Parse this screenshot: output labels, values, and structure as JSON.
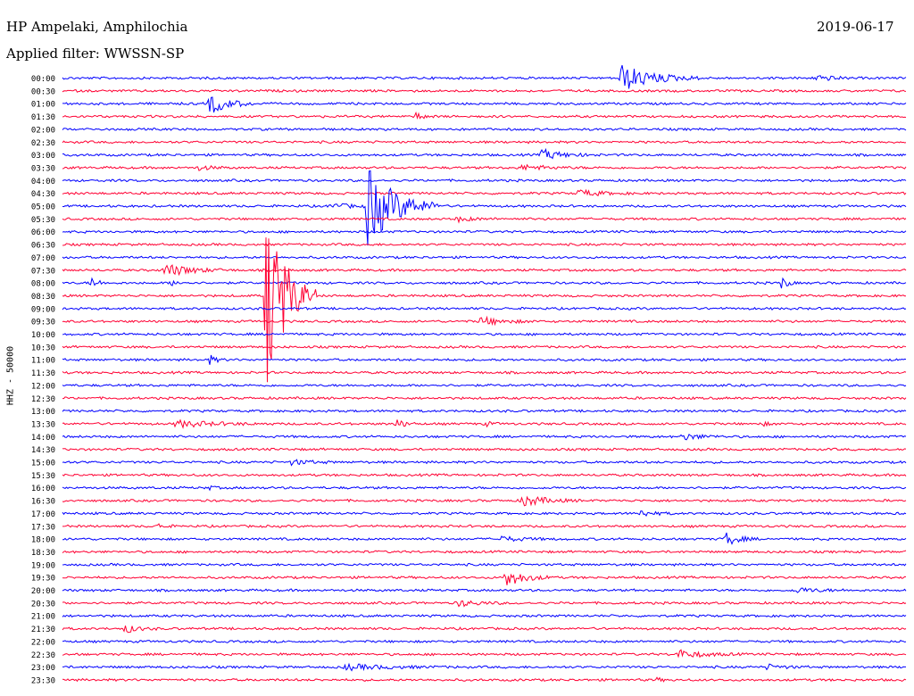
{
  "header": {
    "station": "HP Ampelaki, Amphilochia",
    "date": "2019-06-17",
    "filter": "Applied filter: WWSSN-SP"
  },
  "colors": {
    "even": "#0000ff",
    "odd": "#ff0033"
  },
  "chart_data": {
    "type": "line",
    "ylabel": "HHZ - 50000",
    "row_labels": [
      "00:00",
      "00:30",
      "01:00",
      "01:30",
      "02:00",
      "02:30",
      "03:00",
      "03:30",
      "04:00",
      "04:30",
      "05:00",
      "05:30",
      "06:00",
      "06:30",
      "07:00",
      "07:30",
      "08:00",
      "08:30",
      "09:00",
      "09:30",
      "10:00",
      "10:30",
      "11:00",
      "11:30",
      "12:00",
      "12:30",
      "13:00",
      "13:30",
      "14:00",
      "14:30",
      "15:00",
      "15:30",
      "16:00",
      "16:30",
      "17:00",
      "17:30",
      "18:00",
      "18:30",
      "19:00",
      "19:30",
      "20:00",
      "20:30",
      "21:00",
      "21:30",
      "22:00",
      "22:30",
      "23:00",
      "23:30"
    ],
    "row_minutes": 30,
    "events": [
      {
        "row": 0,
        "minute": 19.8,
        "amp": 16,
        "dur": 1.0
      },
      {
        "row": 0,
        "minute": 26.8,
        "amp": 5,
        "dur": 0.4
      },
      {
        "row": 2,
        "minute": 5.2,
        "amp": 12,
        "dur": 0.6
      },
      {
        "row": 3,
        "minute": 12.5,
        "amp": 4,
        "dur": 0.3
      },
      {
        "row": 6,
        "minute": 17.0,
        "amp": 6,
        "dur": 0.7
      },
      {
        "row": 7,
        "minute": 16.3,
        "amp": 3,
        "dur": 0.8
      },
      {
        "row": 7,
        "minute": 4.8,
        "amp": 3,
        "dur": 0.4
      },
      {
        "row": 9,
        "minute": 18.3,
        "amp": 4,
        "dur": 0.7
      },
      {
        "row": 10,
        "minute": 10.8,
        "amp": 48,
        "dur": 0.9
      },
      {
        "row": 10,
        "minute": 9.5,
        "amp": 3,
        "dur": 0.7
      },
      {
        "row": 11,
        "minute": 14.0,
        "amp": 3,
        "dur": 0.5
      },
      {
        "row": 15,
        "minute": 3.6,
        "amp": 8,
        "dur": 0.8
      },
      {
        "row": 16,
        "minute": 1.0,
        "amp": 8,
        "dur": 0.2
      },
      {
        "row": 16,
        "minute": 25.5,
        "amp": 9,
        "dur": 0.2
      },
      {
        "row": 16,
        "minute": 3.8,
        "amp": 3,
        "dur": 0.3
      },
      {
        "row": 17,
        "minute": 7.2,
        "amp": 125,
        "dur": 0.6
      },
      {
        "row": 19,
        "minute": 14.8,
        "amp": 5,
        "dur": 0.7
      },
      {
        "row": 22,
        "minute": 5.2,
        "amp": 6,
        "dur": 0.2
      },
      {
        "row": 27,
        "minute": 4.0,
        "amp": 4,
        "dur": 1.2
      },
      {
        "row": 27,
        "minute": 11.8,
        "amp": 6,
        "dur": 0.3
      },
      {
        "row": 27,
        "minute": 15.0,
        "amp": 3,
        "dur": 0.2
      },
      {
        "row": 27,
        "minute": 24.8,
        "amp": 3,
        "dur": 0.2
      },
      {
        "row": 28,
        "minute": 22.0,
        "amp": 4,
        "dur": 0.6
      },
      {
        "row": 30,
        "minute": 8.1,
        "amp": 3,
        "dur": 0.6
      },
      {
        "row": 32,
        "minute": 5.1,
        "amp": 3,
        "dur": 0.2
      },
      {
        "row": 33,
        "minute": 16.3,
        "amp": 7,
        "dur": 0.7
      },
      {
        "row": 34,
        "minute": 20.5,
        "amp": 4,
        "dur": 0.4
      },
      {
        "row": 35,
        "minute": 3.4,
        "amp": 4,
        "dur": 0.2
      },
      {
        "row": 36,
        "minute": 15.5,
        "amp": 3,
        "dur": 0.7
      },
      {
        "row": 36,
        "minute": 23.5,
        "amp": 9,
        "dur": 0.4
      },
      {
        "row": 39,
        "minute": 15.7,
        "amp": 11,
        "dur": 0.6
      },
      {
        "row": 40,
        "minute": 26.0,
        "amp": 3,
        "dur": 0.7
      },
      {
        "row": 41,
        "minute": 14.0,
        "amp": 4,
        "dur": 0.6
      },
      {
        "row": 43,
        "minute": 2.2,
        "amp": 5,
        "dur": 0.4
      },
      {
        "row": 45,
        "minute": 21.8,
        "amp": 5,
        "dur": 0.8
      },
      {
        "row": 46,
        "minute": 10.0,
        "amp": 3,
        "dur": 1.5
      },
      {
        "row": 46,
        "minute": 25.0,
        "amp": 3,
        "dur": 0.5
      },
      {
        "row": 47,
        "minute": 21.0,
        "amp": 3,
        "dur": 0.2
      }
    ]
  }
}
